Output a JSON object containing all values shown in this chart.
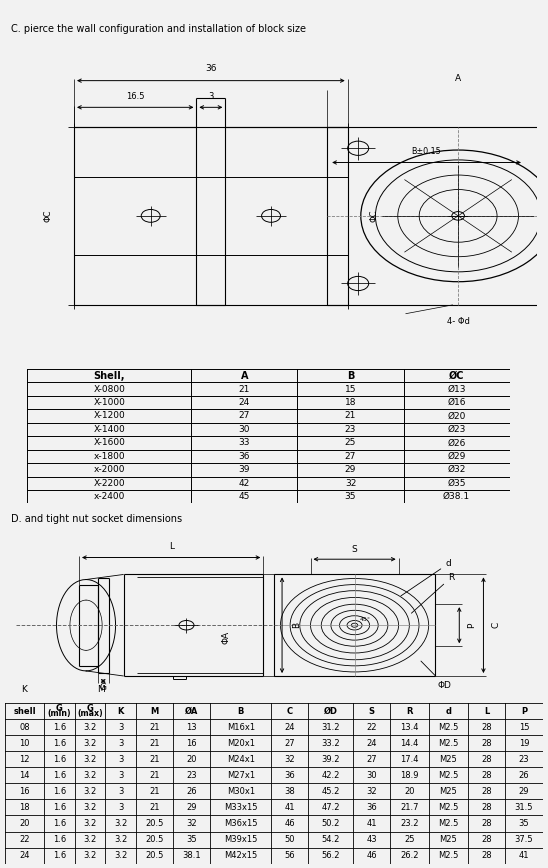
{
  "title_c": "C. pierce the wall configuration and installation of block size",
  "title_d": "D. and tight nut socket dimensions",
  "bg_color": "#f2f2f2",
  "table_c_headers": [
    "Shell,",
    "A",
    "B",
    "ØC"
  ],
  "table_c_rows": [
    [
      "X-0800",
      "21",
      "15",
      "Ø13"
    ],
    [
      "X-1000",
      "24",
      "18",
      "Ø16"
    ],
    [
      "X-1200",
      "27",
      "21",
      "Ø20"
    ],
    [
      "X-1400",
      "30",
      "23",
      "Ø23"
    ],
    [
      "X-1600",
      "33",
      "25",
      "Ø26"
    ],
    [
      "x-1800",
      "36",
      "27",
      "Ø29"
    ],
    [
      "x-2000",
      "39",
      "29",
      "Ø32"
    ],
    [
      "X-2200",
      "42",
      "32",
      "Ø35"
    ],
    [
      "x-2400",
      "45",
      "35",
      "Ø38.1"
    ]
  ],
  "table_d_headers": [
    "shell",
    "G\n(min)",
    "G\n(max)",
    "K",
    "M",
    "ØA",
    "B",
    "C",
    "ØD",
    "S",
    "R",
    "d",
    "L",
    "P"
  ],
  "table_d_rows": [
    [
      "08",
      "1.6",
      "3.2",
      "3",
      "21",
      "13",
      "M16x1",
      "24",
      "31.2",
      "22",
      "13.4",
      "M2.5",
      "28",
      "15"
    ],
    [
      "10",
      "1.6",
      "3.2",
      "3",
      "21",
      "16",
      "M20x1",
      "27",
      "33.2",
      "24",
      "14.4",
      "M2.5",
      "28",
      "19"
    ],
    [
      "12",
      "1.6",
      "3.2",
      "3",
      "21",
      "20",
      "M24x1",
      "32",
      "39.2",
      "27",
      "17.4",
      "M25",
      "28",
      "23"
    ],
    [
      "14",
      "1.6",
      "3.2",
      "3",
      "21",
      "23",
      "M27x1",
      "36",
      "42.2",
      "30",
      "18.9",
      "M2.5",
      "28",
      "26"
    ],
    [
      "16",
      "1.6",
      "3.2",
      "3",
      "21",
      "26",
      "M30x1",
      "38",
      "45.2",
      "32",
      "20",
      "M25",
      "28",
      "29"
    ],
    [
      "18",
      "1.6",
      "3.2",
      "3",
      "21",
      "29",
      "M33x15",
      "41",
      "47.2",
      "36",
      "21.7",
      "M2.5",
      "28",
      "31.5"
    ],
    [
      "20",
      "1.6",
      "3.2",
      "3.2",
      "20.5",
      "32",
      "M36x15",
      "46",
      "50.2",
      "41",
      "23.2",
      "M2.5",
      "28",
      "35"
    ],
    [
      "22",
      "1.6",
      "3.2",
      "3.2",
      "20.5",
      "35",
      "M39x15",
      "50",
      "54.2",
      "43",
      "25",
      "M25",
      "28",
      "37.5"
    ],
    [
      "24",
      "1.6",
      "3.2",
      "3.2",
      "20.5",
      "38.1",
      "M42x15",
      "56",
      "56.2",
      "46",
      "26.2",
      "M2.5",
      "28",
      "41"
    ]
  ]
}
